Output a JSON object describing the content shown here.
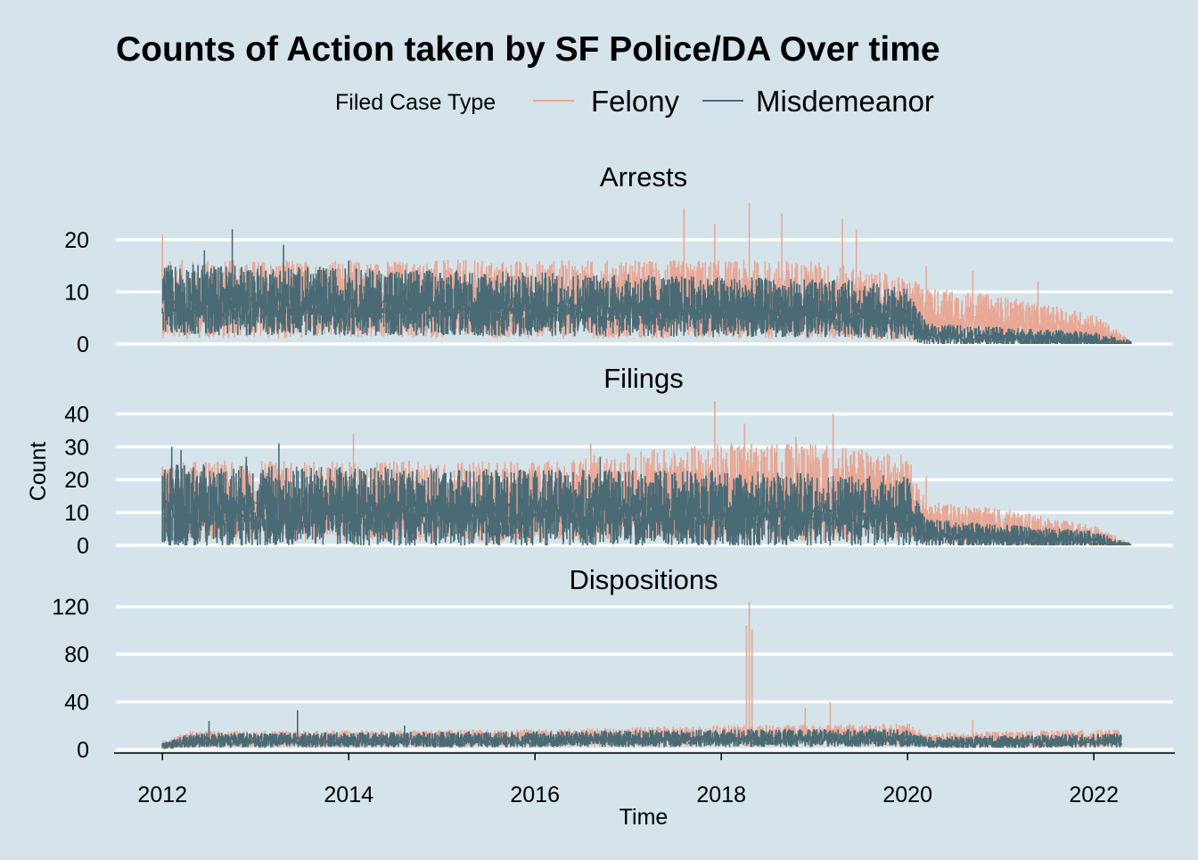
{
  "chart_data": {
    "type": "line",
    "title": "Counts of Action taken by SF Police/DA Over time",
    "xlabel": "Time",
    "ylabel": "Count",
    "legend": {
      "title": "Filed Case Type",
      "placement": "top",
      "entries": [
        {
          "name": "Felony",
          "color": "#e8a895"
        },
        {
          "name": "Misdemeanor",
          "color": "#4a6b76"
        }
      ]
    },
    "x_ticks": [
      "2012",
      "2014",
      "2016",
      "2018",
      "2020",
      "2022"
    ],
    "x_range": [
      2011.5,
      2022.85
    ],
    "grid": "horizontal major only",
    "panels": [
      {
        "name": "Arrests",
        "ylim": [
          0,
          27
        ],
        "y_ticks": [
          0,
          10,
          20
        ],
        "series": [
          {
            "name": "Felony",
            "color": "#e8a895",
            "baseline_segments": [
              [
                2012.0,
                9
              ],
              [
                2016.0,
                9
              ],
              [
                2019.0,
                9
              ],
              [
                2020.0,
                7
              ],
              [
                2020.2,
                6
              ],
              [
                2021.0,
                5
              ],
              [
                2022.0,
                3
              ],
              [
                2022.4,
                0
              ]
            ],
            "spread": 0.5,
            "spikes": [
              [
                2017.6,
                26
              ],
              [
                2018.3,
                27
              ],
              [
                2018.65,
                25
              ],
              [
                2019.3,
                24
              ],
              [
                2017.93,
                23
              ],
              [
                2019.45,
                22
              ],
              [
                2020.2,
                15
              ],
              [
                2020.7,
                14
              ],
              [
                2021.4,
                12
              ],
              [
                2012.0,
                21
              ]
            ]
          },
          {
            "name": "Misdemeanor",
            "color": "#4a6b76",
            "baseline_segments": [
              [
                2012.0,
                9
              ],
              [
                2016.0,
                8
              ],
              [
                2019.5,
                7
              ],
              [
                2020.0,
                6
              ],
              [
                2020.2,
                2
              ],
              [
                2022.0,
                1
              ],
              [
                2022.4,
                0
              ]
            ],
            "spread": 0.45,
            "spikes": [
              [
                2012.75,
                22
              ],
              [
                2012.45,
                18
              ],
              [
                2013.3,
                19
              ],
              [
                2014.0,
                16
              ]
            ]
          }
        ]
      },
      {
        "name": "Filings",
        "ylim": [
          0,
          45
        ],
        "y_ticks": [
          0,
          10,
          20,
          30,
          40
        ],
        "series": [
          {
            "name": "Felony",
            "color": "#e8a895",
            "baseline_segments": [
              [
                2012.0,
                14
              ],
              [
                2016.0,
                14
              ],
              [
                2017.9,
                17
              ],
              [
                2019.0,
                17
              ],
              [
                2020.0,
                15
              ],
              [
                2020.2,
                7
              ],
              [
                2021.0,
                6
              ],
              [
                2022.0,
                3
              ],
              [
                2022.4,
                0
              ]
            ],
            "spread": 0.55,
            "spikes": [
              [
                2017.93,
                44
              ],
              [
                2019.2,
                40
              ],
              [
                2018.25,
                37
              ],
              [
                2014.05,
                34
              ],
              [
                2018.8,
                33
              ],
              [
                2016.6,
                31
              ],
              [
                2020.2,
                21
              ],
              [
                2012.0,
                23
              ]
            ]
          },
          {
            "name": "Misdemeanor",
            "color": "#4a6b76",
            "baseline_segments": [
              [
                2012.0,
                13
              ],
              [
                2016.0,
                12
              ],
              [
                2018.0,
                12
              ],
              [
                2020.0,
                11
              ],
              [
                2020.2,
                4
              ],
              [
                2022.0,
                2
              ],
              [
                2022.4,
                0
              ]
            ],
            "spread": 0.6,
            "spikes": [
              [
                2012.1,
                30
              ],
              [
                2012.2,
                29
              ],
              [
                2013.25,
                31
              ],
              [
                2012.9,
                27
              ],
              [
                2016.7,
                27
              ]
            ]
          }
        ]
      },
      {
        "name": "Dispositions",
        "ylim": [
          0,
          128
        ],
        "y_ticks": [
          0,
          40,
          80,
          120
        ],
        "series": [
          {
            "name": "Felony",
            "color": "#e8a895",
            "baseline_segments": [
              [
                2012.0,
                4
              ],
              [
                2012.3,
                9
              ],
              [
                2016.0,
                10
              ],
              [
                2018.0,
                12
              ],
              [
                2020.0,
                13
              ],
              [
                2020.2,
                8
              ],
              [
                2021.0,
                9
              ],
              [
                2022.3,
                10
              ]
            ],
            "spread": 0.45,
            "spikes": [
              [
                2018.3,
                124
              ],
              [
                2018.27,
                104
              ],
              [
                2018.33,
                101
              ],
              [
                2019.17,
                40
              ],
              [
                2018.9,
                35
              ],
              [
                2020.7,
                25
              ]
            ]
          },
          {
            "name": "Misdemeanor",
            "color": "#4a6b76",
            "baseline_segments": [
              [
                2012.0,
                3
              ],
              [
                2012.3,
                8
              ],
              [
                2016.0,
                9
              ],
              [
                2018.0,
                10
              ],
              [
                2020.0,
                10
              ],
              [
                2020.2,
                6
              ],
              [
                2021.0,
                7
              ],
              [
                2022.3,
                8
              ]
            ],
            "spread": 0.45,
            "spikes": [
              [
                2013.45,
                33
              ],
              [
                2012.5,
                24
              ],
              [
                2014.6,
                20
              ]
            ]
          }
        ]
      }
    ]
  }
}
